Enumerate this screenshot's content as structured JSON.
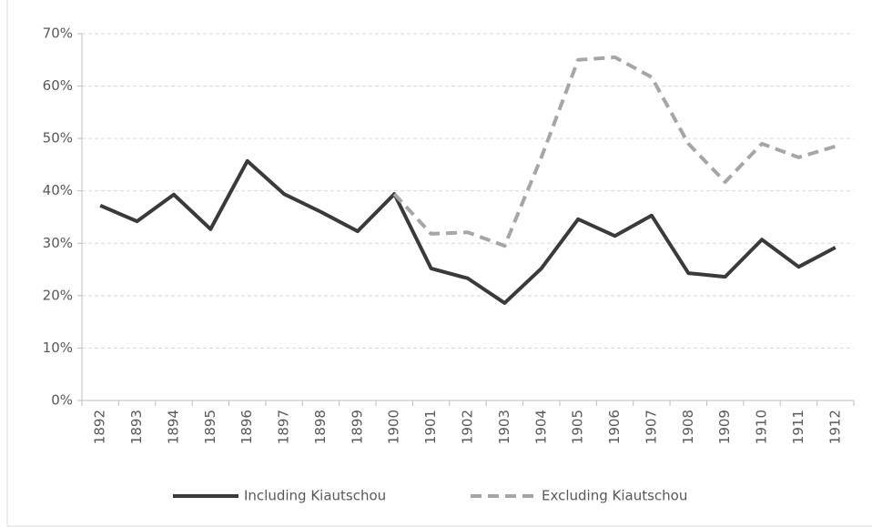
{
  "chart_data": {
    "type": "line",
    "categories": [
      "1892",
      "1893",
      "1894",
      "1895",
      "1896",
      "1897",
      "1898",
      "1899",
      "1900",
      "1901",
      "1902",
      "1903",
      "1904",
      "1905",
      "1906",
      "1907",
      "1908",
      "1909",
      "1910",
      "1911",
      "1912"
    ],
    "series": [
      {
        "name": "Including Kiautschou",
        "color": "#3a3a3a",
        "line_style": "solid",
        "values": [
          37.2,
          34.2,
          39.3,
          32.7,
          45.7,
          39.4,
          36,
          32.3,
          39.4,
          25.2,
          23.3,
          18.6,
          25.2,
          34.6,
          31.4,
          35.3,
          24.3,
          23.6,
          30.7,
          25.5,
          29.2
        ]
      },
      {
        "name": "Excluding Kiautschou",
        "color": "#a6a6a6",
        "line_style": "dashed",
        "values": [
          null,
          null,
          null,
          null,
          null,
          null,
          null,
          null,
          39.4,
          31.8,
          32.1,
          29.5,
          46.4,
          65,
          65.5,
          61.7,
          49,
          41.7,
          49,
          46.4,
          48.5
        ]
      }
    ],
    "ylim": [
      0,
      70
    ],
    "yticks": [
      {
        "value": 0,
        "label": "0%"
      },
      {
        "value": 10,
        "label": "10%"
      },
      {
        "value": 20,
        "label": "20%"
      },
      {
        "value": 30,
        "label": "30%"
      },
      {
        "value": 40,
        "label": "40%"
      },
      {
        "value": 50,
        "label": "50%"
      },
      {
        "value": 60,
        "label": "60%"
      },
      {
        "value": 70,
        "label": "70%"
      }
    ],
    "grid": true,
    "legend": "bottom"
  }
}
